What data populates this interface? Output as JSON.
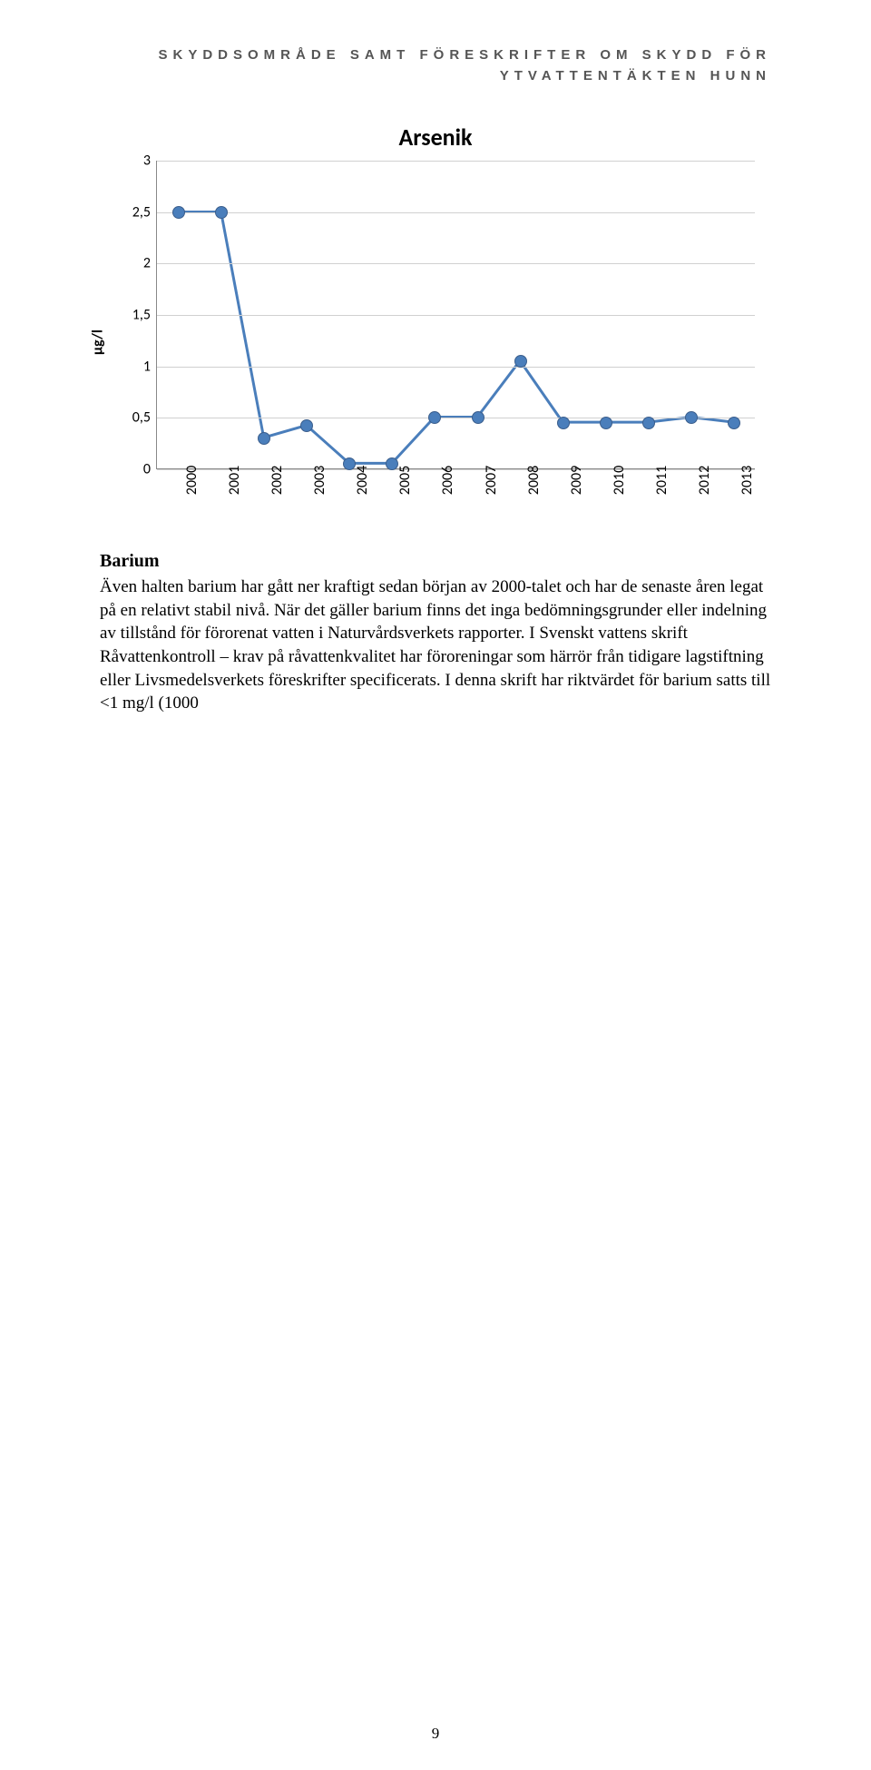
{
  "header": {
    "line1": "SKYDDSOMRÅDE SAMT FÖRESKRIFTER OM SKYDD FÖR",
    "line2": "YTVATTENTÄKTEN HUNN"
  },
  "chart": {
    "type": "line",
    "title": "Arsenik",
    "ylabel": "µg/l",
    "years": [
      "2000",
      "2001",
      "2002",
      "2003",
      "2004",
      "2005",
      "2006",
      "2007",
      "2008",
      "2009",
      "2010",
      "2011",
      "2012",
      "2013"
    ],
    "values": [
      2.5,
      2.5,
      0.3,
      0.42,
      0.05,
      0.05,
      0.5,
      0.5,
      1.05,
      0.45,
      0.45,
      0.45,
      0.5,
      0.45
    ],
    "ylim": [
      0,
      3
    ],
    "ytick_step": 0.5,
    "yticks": [
      "0",
      "0,5",
      "1",
      "1,5",
      "2",
      "2,5",
      "3"
    ],
    "line_color": "#4a7ebb",
    "line_width": 3,
    "marker_fill": "#4a7ebb",
    "marker_border": "#3b5e8c",
    "grid_color": "#d0d0d0",
    "axis_color": "#888888",
    "background": "#ffffff",
    "title_fontsize": 26,
    "label_fontsize": 16
  },
  "section": {
    "heading": "Barium",
    "body": "Även halten barium har gått ner kraftigt sedan början av 2000-talet och har de senaste åren legat på en relativt stabil nivå. När det gäller barium finns det inga bedömningsgrunder eller indelning av tillstånd för förorenat vatten i Naturvårdsverkets rapporter. I Svenskt vattens skrift Råvattenkontroll – krav på råvattenkvalitet har föroreningar som härrör från tidigare lagstiftning eller Livsmedelsverkets föreskrifter specificerats. I denna skrift har riktvärdet för barium satts till <1 mg/l (1000"
  },
  "page_number": "9"
}
